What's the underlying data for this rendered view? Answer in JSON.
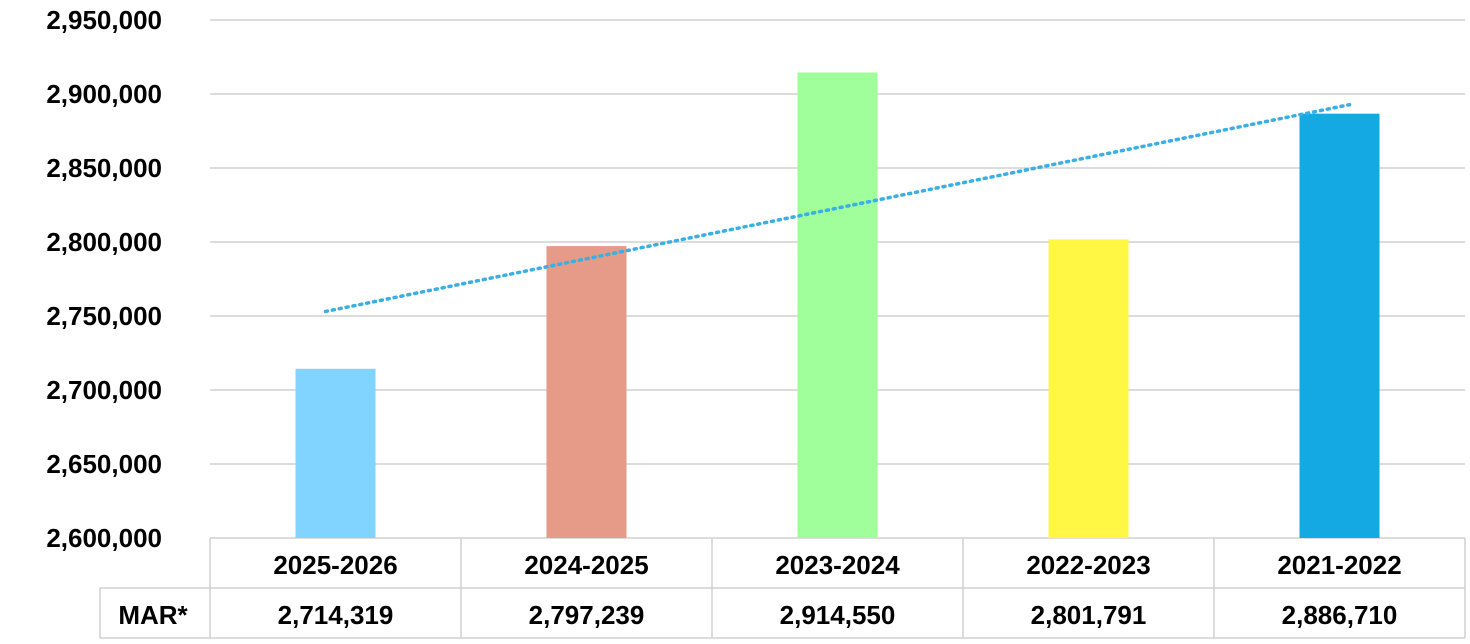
{
  "chart_data": {
    "type": "bar",
    "categories": [
      "2025-2026",
      "2024-2025",
      "2023-2024",
      "2022-2023",
      "2021-2022"
    ],
    "series": [
      {
        "name": "MAR*",
        "values": [
          2714319,
          2797239,
          2914550,
          2801791,
          2886710
        ]
      }
    ],
    "value_labels": [
      "2,714,319",
      "2,797,239",
      "2,914,550",
      "2,801,791",
      "2,886,710"
    ],
    "bar_colors": [
      "#80D4FF",
      "#E69A88",
      "#A0FF9A",
      "#FFF744",
      "#14A9E3"
    ],
    "ylim": [
      2600000,
      2950000
    ],
    "yticks": [
      2600000,
      2650000,
      2700000,
      2750000,
      2800000,
      2850000,
      2900000,
      2950000
    ],
    "ytick_labels": [
      "2,600,000",
      "2,650,000",
      "2,700,000",
      "2,750,000",
      "2,800,000",
      "2,850,000",
      "2,900,000",
      "2,950,000"
    ],
    "grid": true,
    "trendline": {
      "type": "linear",
      "style": "dotted",
      "color": "#3AAFE4"
    },
    "data_table": true,
    "title": "",
    "xlabel": "",
    "ylabel": ""
  }
}
